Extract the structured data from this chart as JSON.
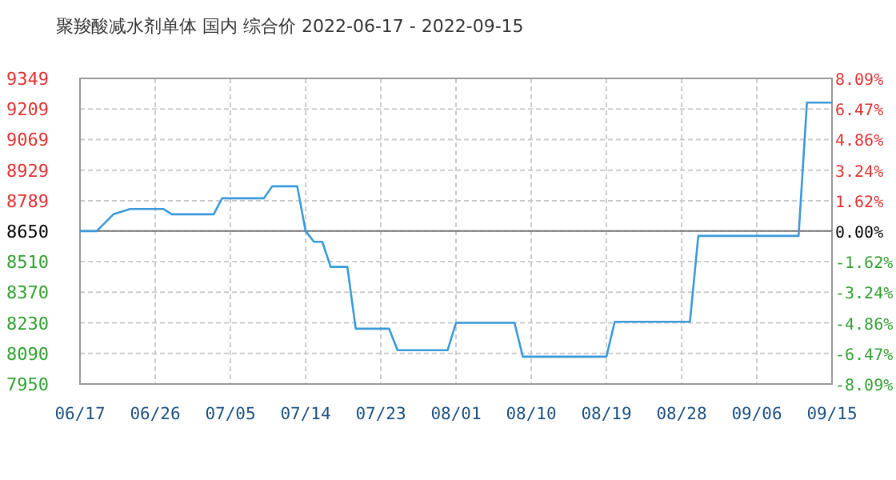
{
  "chart_data": {
    "type": "line",
    "title": "聚羧酸减水剂单体 国内 综合价 2022-06-17 - 2022-09-15",
    "x": [
      "2022-06-17",
      "2022-06-19",
      "2022-06-21",
      "2022-06-23",
      "2022-06-27",
      "2022-06-28",
      "2022-07-03",
      "2022-07-04",
      "2022-07-09",
      "2022-07-10",
      "2022-07-13",
      "2022-07-14",
      "2022-07-15",
      "2022-07-16",
      "2022-07-17",
      "2022-07-19",
      "2022-07-20",
      "2022-07-24",
      "2022-07-25",
      "2022-07-31",
      "2022-08-01",
      "2022-08-08",
      "2022-08-09",
      "2022-08-19",
      "2022-08-20",
      "2022-08-29",
      "2022-08-30",
      "2022-09-11",
      "2022-09-12",
      "2022-09-15"
    ],
    "series": [
      {
        "color": "#3a9ad9",
        "values": [
          8650,
          8650,
          8727,
          8751,
          8751,
          8727,
          8727,
          8800,
          8800,
          8855,
          8855,
          8650,
          8601,
          8601,
          8486,
          8486,
          8203,
          8203,
          8105,
          8105,
          8230,
          8230,
          8075,
          8075,
          8235,
          8235,
          8628,
          8628,
          9238,
          9238
        ]
      }
    ],
    "xlim": [
      "2022-06-17",
      "2022-09-15"
    ],
    "xticks": [
      {
        "value": "2022-06-17",
        "label": "06/17"
      },
      {
        "value": "2022-06-26",
        "label": "06/26"
      },
      {
        "value": "2022-07-05",
        "label": "07/05"
      },
      {
        "value": "2022-07-14",
        "label": "07/14"
      },
      {
        "value": "2022-07-23",
        "label": "07/23"
      },
      {
        "value": "2022-08-01",
        "label": "08/01"
      },
      {
        "value": "2022-08-10",
        "label": "08/10"
      },
      {
        "value": "2022-08-19",
        "label": "08/19"
      },
      {
        "value": "2022-08-28",
        "label": "08/28"
      },
      {
        "value": "2022-09-06",
        "label": "09/06"
      },
      {
        "value": "2022-09-15",
        "label": "09/15"
      }
    ],
    "ylim": [
      7950,
      9349
    ],
    "yticks": [
      7950,
      8090,
      8230,
      8370,
      8510,
      8650,
      8789,
      8929,
      9069,
      9209,
      9349
    ],
    "y2lim": [
      -8.09,
      8.09
    ],
    "y2ticks": [
      {
        "value": -8.09,
        "label": "-8.09%"
      },
      {
        "value": -6.47,
        "label": "-6.47%"
      },
      {
        "value": -4.86,
        "label": "-4.86%"
      },
      {
        "value": -3.24,
        "label": "-3.24%"
      },
      {
        "value": -1.62,
        "label": "-1.62%"
      },
      {
        "value": 0,
        "label": "0.00%"
      },
      {
        "value": 1.62,
        "label": "1.62%"
      },
      {
        "value": 3.24,
        "label": "3.24%"
      },
      {
        "value": 4.86,
        "label": "4.86%"
      },
      {
        "value": 6.47,
        "label": "6.47%"
      },
      {
        "value": 8.09,
        "label": "8.09%"
      }
    ],
    "ref_lines": [
      {
        "axis": "y",
        "value": 8650
      }
    ],
    "grid": true,
    "marker": "none",
    "line_style": "solid"
  }
}
